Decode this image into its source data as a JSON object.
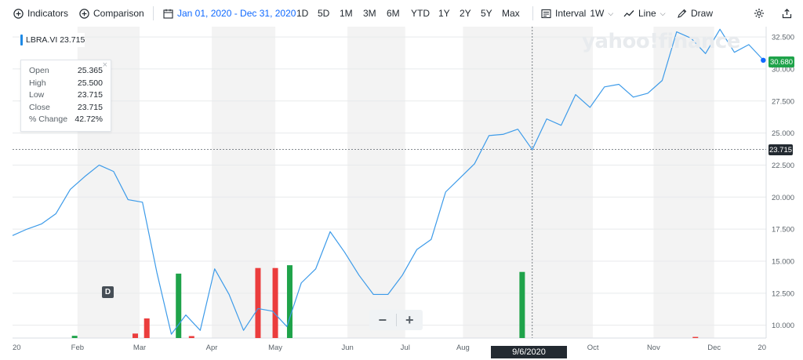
{
  "toolbar": {
    "indicators_label": "Indicators",
    "comparison_label": "Comparison",
    "date_range": "Jan 01, 2020 - Dec 31, 2020",
    "ranges": [
      "1D",
      "5D",
      "1M",
      "3M",
      "6M",
      "YTD",
      "1Y",
      "2Y",
      "5Y",
      "Max"
    ],
    "interval_label": "Interval",
    "interval_value": "1W",
    "line_label": "Line",
    "draw_label": "Draw",
    "icons": [
      "plus-circle-icon",
      "plus-circle-icon",
      "calendar-icon",
      "interval-icon",
      "line-chart-icon",
      "pencil-icon",
      "gear-icon",
      "share-icon"
    ]
  },
  "watermark": "yahoo!finance",
  "ticker": {
    "symbol": "LBRA.VI",
    "price": "23.715"
  },
  "info": {
    "rows": [
      {
        "label": "Open",
        "value": "25.365"
      },
      {
        "label": "High",
        "value": "25.500"
      },
      {
        "label": "Low",
        "value": "23.715"
      },
      {
        "label": "Close",
        "value": "23.715"
      },
      {
        "label": "% Change",
        "value": "42.72%"
      }
    ],
    "close_symbol": "×"
  },
  "zoom": {
    "minus": "−",
    "plus": "+"
  },
  "dividend_marker": "D",
  "crosshair": {
    "date_label": "9/6/2020",
    "price_label": "23.715"
  },
  "last_price_label": "30.680",
  "colors": {
    "line": "#3d9be9",
    "volume_up": "#1fa34a",
    "volume_down": "#eb3d3d",
    "band": "#f3f3f3",
    "grid": "#e8eaec"
  },
  "chart_data": {
    "type": "line",
    "ylim": [
      9.0,
      33.3
    ],
    "yticks": [
      "10.000",
      "12.500",
      "15.000",
      "17.500",
      "20.000",
      "22.500",
      "25.000",
      "27.500",
      "30.000",
      "32.500"
    ],
    "ytick_values": [
      10,
      12.5,
      15,
      17.5,
      20,
      22.5,
      25,
      27.5,
      30,
      32.5
    ],
    "xticks": [
      "20",
      "Feb",
      "Mar",
      "Apr",
      "May",
      "Jun",
      "Jul",
      "Aug",
      "Oct",
      "Nov",
      "Dec",
      "20"
    ],
    "xtick_weeks": [
      0,
      4.5,
      8.8,
      13.8,
      18.2,
      23.2,
      27.2,
      31.2,
      40.2,
      44.4,
      48.6,
      52.2
    ],
    "week_step": 1,
    "series": [
      {
        "values": [
          17.0,
          17.5,
          17.9,
          18.7,
          20.6,
          21.6,
          22.5,
          22.0,
          19.8,
          19.6,
          14.1,
          9.3,
          10.8,
          9.6,
          14.4,
          12.4,
          9.6,
          11.3,
          11.1,
          9.9,
          13.3,
          14.4,
          17.3,
          15.7,
          13.9,
          12.4,
          12.4,
          13.9,
          15.9,
          16.7,
          20.4,
          21.5,
          22.6,
          24.8,
          24.9,
          25.3,
          23.7,
          26.1,
          25.6,
          28.0,
          27.0,
          28.6,
          28.8,
          27.8,
          28.1,
          29.1,
          32.9,
          32.4,
          31.2,
          33.1,
          31.3,
          31.9,
          30.7
        ]
      }
    ],
    "volume_bars": [
      {
        "week": 4.3,
        "value": 0.4,
        "dir": "up"
      },
      {
        "week": 8.5,
        "value": 0.8,
        "dir": "down"
      },
      {
        "week": 9.3,
        "value": 3.5,
        "dir": "down"
      },
      {
        "week": 11.5,
        "value": 11.5,
        "dir": "up"
      },
      {
        "week": 12.4,
        "value": 0.35,
        "dir": "down"
      },
      {
        "week": 17.0,
        "value": 12.5,
        "dir": "down"
      },
      {
        "week": 18.2,
        "value": 12.5,
        "dir": "down"
      },
      {
        "week": 19.2,
        "value": 13.0,
        "dir": "up"
      },
      {
        "week": 35.3,
        "value": 11.8,
        "dir": "up"
      },
      {
        "week": 47.3,
        "value": 0.2,
        "dir": "down"
      }
    ],
    "volume_max": 14,
    "crosshair_week": 36,
    "crosshair_value": 23.715,
    "last_value": 30.68,
    "grid": true
  }
}
